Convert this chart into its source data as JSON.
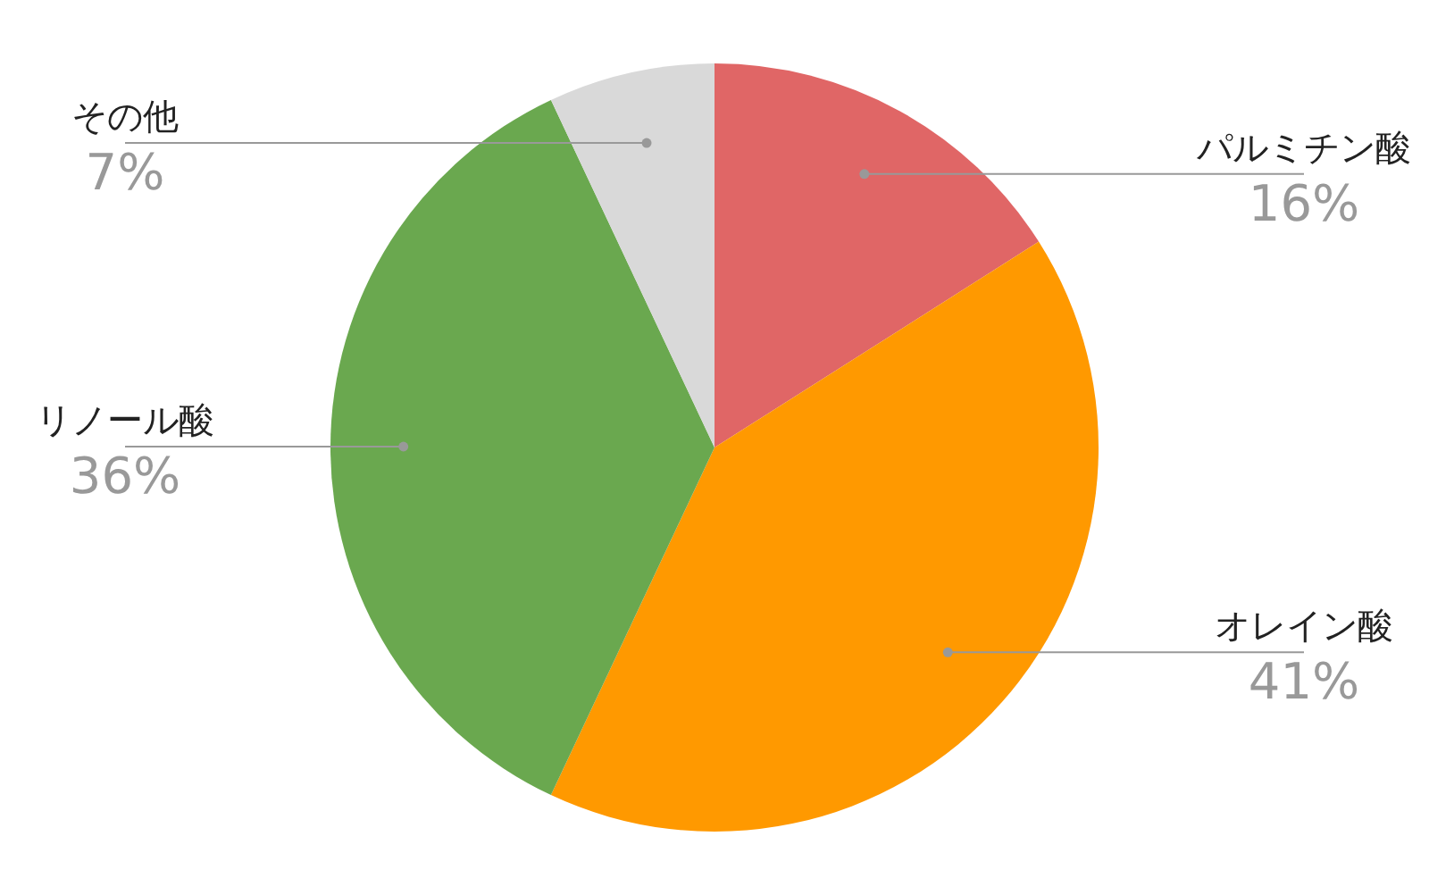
{
  "chart_data": {
    "type": "pie",
    "categories": [
      "パルミチン酸",
      "オレイン酸",
      "リノール酸",
      "その他"
    ],
    "values": [
      16,
      41,
      36,
      7
    ],
    "colors": [
      "#e06666",
      "#ff9900",
      "#6aa84f",
      "#d9d9d9"
    ],
    "value_labels": [
      "16%",
      "41%",
      "36%",
      "7%"
    ]
  }
}
